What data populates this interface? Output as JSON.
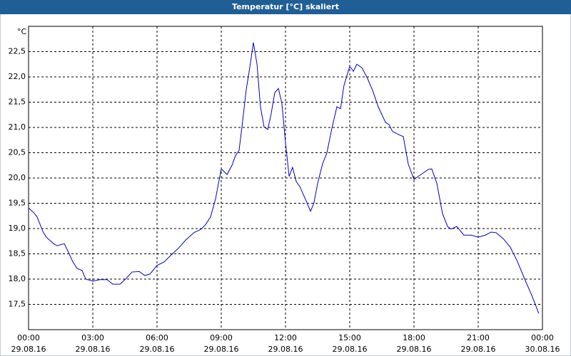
{
  "chart_data": {
    "type": "line",
    "title": "Temperatur [°C] skaliert",
    "y_unit": "°C",
    "x": [
      0,
      0.27,
      0.4,
      0.67,
      0.83,
      1.17,
      1.33,
      1.67,
      1.83,
      2.07,
      2.27,
      2.5,
      2.67,
      3.0,
      3.33,
      3.67,
      3.93,
      4.27,
      4.53,
      4.83,
      5.17,
      5.43,
      5.67,
      6.0,
      6.33,
      6.67,
      7.0,
      7.33,
      7.73,
      8.07,
      8.27,
      8.5,
      8.73,
      9.0,
      9.27,
      9.5,
      9.67,
      9.83,
      10.0,
      10.17,
      10.33,
      10.5,
      10.67,
      10.83,
      11.0,
      11.17,
      11.33,
      11.5,
      11.67,
      11.83,
      12.0,
      12.17,
      12.33,
      12.5,
      12.67,
      12.93,
      13.17,
      13.33,
      13.5,
      13.73,
      13.93,
      14.17,
      14.4,
      14.57,
      14.73,
      15.0,
      15.17,
      15.33,
      15.57,
      15.83,
      16.07,
      16.33,
      16.67,
      16.83,
      17.0,
      17.33,
      17.5,
      17.73,
      18.0,
      18.33,
      18.67,
      18.83,
      19.07,
      19.33,
      19.57,
      19.73,
      20.0,
      20.33,
      20.67,
      21.0,
      21.33,
      21.6,
      21.83,
      22.17,
      22.5,
      22.83,
      23.17,
      23.5,
      23.83
    ],
    "series": [
      {
        "color": "#0000cc",
        "values": [
          19.41,
          19.3,
          19.23,
          18.94,
          18.83,
          18.7,
          18.66,
          18.7,
          18.56,
          18.34,
          18.21,
          18.17,
          18.0,
          17.96,
          17.99,
          17.99,
          17.9,
          17.9,
          18.0,
          18.14,
          18.15,
          18.07,
          18.1,
          18.27,
          18.34,
          18.48,
          18.61,
          18.77,
          18.92,
          18.99,
          19.08,
          19.23,
          19.58,
          20.18,
          20.07,
          20.25,
          20.45,
          20.54,
          21.13,
          21.76,
          22.18,
          22.68,
          22.25,
          21.41,
          21.01,
          20.96,
          21.27,
          21.69,
          21.77,
          21.48,
          20.7,
          20.03,
          20.21,
          19.93,
          19.83,
          19.58,
          19.34,
          19.51,
          19.89,
          20.28,
          20.49,
          20.99,
          21.41,
          21.37,
          21.83,
          22.21,
          22.11,
          22.25,
          22.18,
          21.97,
          21.73,
          21.41,
          21.1,
          21.06,
          20.92,
          20.85,
          20.82,
          20.28,
          19.97,
          20.07,
          20.17,
          20.18,
          19.89,
          19.3,
          19.04,
          18.99,
          19.04,
          18.87,
          18.87,
          18.83,
          18.87,
          18.93,
          18.92,
          18.8,
          18.63,
          18.35,
          18.0,
          17.68,
          17.32
        ]
      }
    ],
    "xlim": [
      0,
      24
    ],
    "xticks": [
      {
        "value": 0,
        "label": "00:00"
      },
      {
        "value": 3,
        "label": "03:00"
      },
      {
        "value": 6,
        "label": "06:00"
      },
      {
        "value": 9,
        "label": "09:00"
      },
      {
        "value": 12,
        "label": "12:00"
      },
      {
        "value": 15,
        "label": "15:00"
      },
      {
        "value": 18,
        "label": "18:00"
      },
      {
        "value": 21,
        "label": "21:00"
      },
      {
        "value": 24,
        "label": "00:00"
      }
    ],
    "x_dates": [
      "29.08.16",
      "29.08.16",
      "29.08.16",
      "29.08.16",
      "29.08.16",
      "29.08.16",
      "29.08.16",
      "29.08.16",
      "30.08.16"
    ],
    "ylim": [
      17,
      23
    ],
    "yticks": [
      {
        "value": 17.5,
        "label": "17,5"
      },
      {
        "value": 18,
        "label": "18,0"
      },
      {
        "value": 18.5,
        "label": "18,5"
      },
      {
        "value": 19,
        "label": "19,0"
      },
      {
        "value": 19.5,
        "label": "19,5"
      },
      {
        "value": 20,
        "label": "20,0"
      },
      {
        "value": 20.5,
        "label": "20,5"
      },
      {
        "value": 21,
        "label": "21,0"
      },
      {
        "value": 21.5,
        "label": "21,5"
      },
      {
        "value": 22,
        "label": "22,0"
      },
      {
        "value": 22.5,
        "label": "22,5"
      }
    ],
    "grid": true
  }
}
